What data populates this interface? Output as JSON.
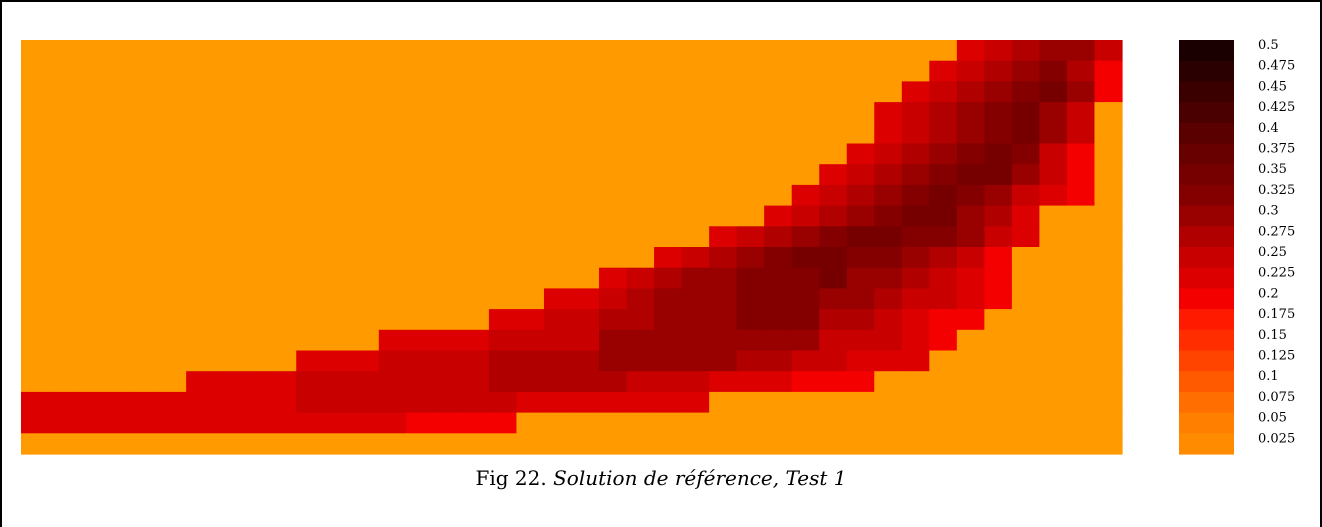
{
  "caption": {
    "label": "Fig 22.",
    "text": "Solution de référence, Test 1"
  },
  "chart_data": {
    "type": "heatmap",
    "title": "",
    "xlabel": "",
    "ylabel": "",
    "colorbar": {
      "ticks": [
        "0.5",
        "0.475",
        "0.45",
        "0.425",
        "0.4",
        "0.375",
        "0.35",
        "0.325",
        "0.3",
        "0.275",
        "0.25",
        "0.225",
        "0.2",
        "0.175",
        "0.15",
        "0.125",
        "0.1",
        "0.075",
        "0.05",
        "0.025"
      ],
      "colors": [
        "#1a0000",
        "#2a0000",
        "#3a0000",
        "#4a0000",
        "#5a0000",
        "#680000",
        "#760000",
        "#840000",
        "#990000",
        "#b00000",
        "#c80000",
        "#dd0000",
        "#f50000",
        "#ff1a00",
        "#ff2d00",
        "#ff4400",
        "#ff5a00",
        "#ff6e00",
        "#ff8000",
        "#ff8c00"
      ]
    },
    "grid": {
      "rows": 20,
      "cols": 40,
      "background_level": 0,
      "row_ranges": [
        [
          [
            34,
            34,
            9
          ],
          [
            35,
            35,
            10
          ],
          [
            36,
            36,
            11
          ],
          [
            37,
            38,
            12
          ],
          [
            39,
            39,
            10
          ]
        ],
        [
          [
            33,
            33,
            9
          ],
          [
            34,
            34,
            10
          ],
          [
            35,
            35,
            11
          ],
          [
            36,
            36,
            12
          ],
          [
            37,
            37,
            13
          ],
          [
            38,
            38,
            11
          ],
          [
            39,
            39,
            8
          ]
        ],
        [
          [
            32,
            32,
            9
          ],
          [
            33,
            33,
            10
          ],
          [
            34,
            34,
            11
          ],
          [
            35,
            35,
            12
          ],
          [
            36,
            36,
            13
          ],
          [
            37,
            37,
            14
          ],
          [
            38,
            38,
            12
          ],
          [
            39,
            39,
            8
          ]
        ],
        [
          [
            31,
            31,
            9
          ],
          [
            32,
            32,
            10
          ],
          [
            33,
            33,
            11
          ],
          [
            34,
            34,
            12
          ],
          [
            35,
            35,
            13
          ],
          [
            36,
            36,
            14
          ],
          [
            37,
            37,
            12
          ],
          [
            38,
            38,
            10
          ]
        ],
        [
          [
            31,
            31,
            9
          ],
          [
            32,
            32,
            10
          ],
          [
            33,
            33,
            11
          ],
          [
            34,
            34,
            12
          ],
          [
            35,
            35,
            13
          ],
          [
            36,
            36,
            14
          ],
          [
            37,
            37,
            12
          ],
          [
            38,
            38,
            10
          ]
        ],
        [
          [
            30,
            30,
            9
          ],
          [
            31,
            31,
            10
          ],
          [
            32,
            32,
            11
          ],
          [
            33,
            33,
            12
          ],
          [
            34,
            34,
            13
          ],
          [
            35,
            35,
            14
          ],
          [
            36,
            36,
            13
          ],
          [
            37,
            37,
            10
          ],
          [
            38,
            38,
            8
          ]
        ],
        [
          [
            29,
            29,
            9
          ],
          [
            30,
            30,
            10
          ],
          [
            31,
            31,
            11
          ],
          [
            32,
            32,
            12
          ],
          [
            33,
            33,
            13
          ],
          [
            34,
            34,
            14
          ],
          [
            35,
            35,
            14
          ],
          [
            36,
            36,
            12
          ],
          [
            37,
            37,
            10
          ],
          [
            38,
            38,
            8
          ]
        ],
        [
          [
            28,
            28,
            9
          ],
          [
            29,
            29,
            10
          ],
          [
            30,
            30,
            11
          ],
          [
            31,
            31,
            12
          ],
          [
            32,
            32,
            13
          ],
          [
            33,
            33,
            14
          ],
          [
            34,
            34,
            13
          ],
          [
            35,
            35,
            12
          ],
          [
            36,
            36,
            10
          ],
          [
            37,
            37,
            9
          ],
          [
            38,
            38,
            8
          ]
        ],
        [
          [
            27,
            27,
            9
          ],
          [
            28,
            28,
            10
          ],
          [
            29,
            29,
            11
          ],
          [
            30,
            30,
            12
          ],
          [
            31,
            31,
            13
          ],
          [
            32,
            33,
            14
          ],
          [
            34,
            34,
            12
          ],
          [
            35,
            35,
            11
          ],
          [
            36,
            36,
            9
          ]
        ],
        [
          [
            25,
            25,
            9
          ],
          [
            26,
            26,
            10
          ],
          [
            27,
            27,
            11
          ],
          [
            28,
            28,
            12
          ],
          [
            29,
            29,
            13
          ],
          [
            30,
            31,
            14
          ],
          [
            32,
            33,
            13
          ],
          [
            34,
            34,
            12
          ],
          [
            35,
            35,
            10
          ],
          [
            36,
            36,
            9
          ]
        ],
        [
          [
            23,
            23,
            9
          ],
          [
            24,
            24,
            10
          ],
          [
            25,
            25,
            11
          ],
          [
            26,
            26,
            12
          ],
          [
            27,
            27,
            13
          ],
          [
            28,
            29,
            14
          ],
          [
            30,
            31,
            13
          ],
          [
            32,
            32,
            12
          ],
          [
            33,
            33,
            11
          ],
          [
            34,
            34,
            10
          ],
          [
            35,
            35,
            8
          ]
        ],
        [
          [
            21,
            21,
            9
          ],
          [
            22,
            22,
            10
          ],
          [
            23,
            23,
            11
          ],
          [
            24,
            25,
            12
          ],
          [
            26,
            28,
            13
          ],
          [
            29,
            29,
            14
          ],
          [
            30,
            31,
            12
          ],
          [
            32,
            32,
            11
          ],
          [
            33,
            33,
            10
          ],
          [
            34,
            34,
            9
          ],
          [
            35,
            35,
            8
          ]
        ],
        [
          [
            19,
            20,
            9
          ],
          [
            21,
            21,
            10
          ],
          [
            22,
            22,
            11
          ],
          [
            23,
            25,
            12
          ],
          [
            26,
            28,
            13
          ],
          [
            29,
            30,
            12
          ],
          [
            31,
            31,
            11
          ],
          [
            32,
            33,
            10
          ],
          [
            34,
            34,
            9
          ],
          [
            35,
            35,
            8
          ]
        ],
        [
          [
            17,
            18,
            9
          ],
          [
            19,
            20,
            10
          ],
          [
            21,
            22,
            11
          ],
          [
            23,
            25,
            12
          ],
          [
            26,
            28,
            13
          ],
          [
            29,
            30,
            11
          ],
          [
            31,
            31,
            10
          ],
          [
            32,
            32,
            9
          ],
          [
            33,
            34,
            8
          ]
        ],
        [
          [
            13,
            16,
            9
          ],
          [
            17,
            20,
            10
          ],
          [
            21,
            25,
            12
          ],
          [
            26,
            28,
            12
          ],
          [
            29,
            31,
            10
          ],
          [
            32,
            32,
            9
          ],
          [
            33,
            33,
            8
          ]
        ],
        [
          [
            10,
            12,
            9
          ],
          [
            13,
            16,
            10
          ],
          [
            17,
            20,
            11
          ],
          [
            21,
            22,
            12
          ],
          [
            23,
            25,
            12
          ],
          [
            26,
            27,
            11
          ],
          [
            28,
            29,
            10
          ],
          [
            30,
            32,
            9
          ]
        ],
        [
          [
            6,
            9,
            9
          ],
          [
            10,
            12,
            10
          ],
          [
            13,
            16,
            10
          ],
          [
            17,
            21,
            11
          ],
          [
            22,
            24,
            10
          ],
          [
            25,
            27,
            9
          ],
          [
            28,
            30,
            8
          ]
        ],
        [
          [
            0,
            5,
            9
          ],
          [
            6,
            9,
            9
          ],
          [
            10,
            12,
            10
          ],
          [
            13,
            17,
            10
          ],
          [
            18,
            21,
            9
          ],
          [
            22,
            24,
            9
          ]
        ],
        [
          [
            0,
            11,
            9
          ],
          [
            12,
            13,
            9
          ],
          [
            14,
            17,
            8
          ]
        ],
        []
      ]
    }
  }
}
